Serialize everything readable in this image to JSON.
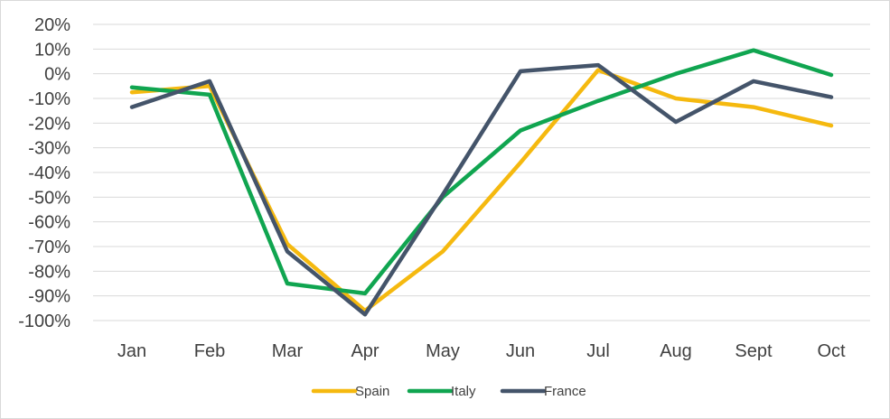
{
  "chart_data": {
    "type": "line",
    "title": "",
    "xlabel": "",
    "ylabel": "",
    "categories": [
      "Jan",
      "Feb",
      "Mar",
      "Apr",
      "May",
      "Jun",
      "Jul",
      "Aug",
      "Sept",
      "Oct"
    ],
    "ylim": [
      -100,
      20
    ],
    "yticks": [
      20,
      10,
      0,
      -10,
      -20,
      -30,
      -40,
      -50,
      -60,
      -70,
      -80,
      -90,
      -100
    ],
    "ytick_labels": [
      "20%",
      "10%",
      "0%",
      "-10%",
      "-20%",
      "-30%",
      "-40%",
      "-50%",
      "-60%",
      "-70%",
      "-80%",
      "-90%",
      "-100%"
    ],
    "grid": true,
    "legend_position": "bottom",
    "series": [
      {
        "name": "Spain",
        "color": "#F5B90F",
        "values": [
          -7.5,
          -5,
          -69,
          -96,
          -72,
          -36,
          1.5,
          -10,
          -13.5,
          -21
        ]
      },
      {
        "name": "Italy",
        "color": "#10A550",
        "values": [
          -5.5,
          -8.5,
          -85,
          -89,
          -50,
          -23,
          -11,
          0,
          9.5,
          -0.5
        ]
      },
      {
        "name": "France",
        "color": "#44546A",
        "values": [
          -13.5,
          -3,
          -72,
          -97.5,
          -49,
          1,
          3.5,
          -19.5,
          -3,
          -9.5
        ]
      }
    ]
  }
}
